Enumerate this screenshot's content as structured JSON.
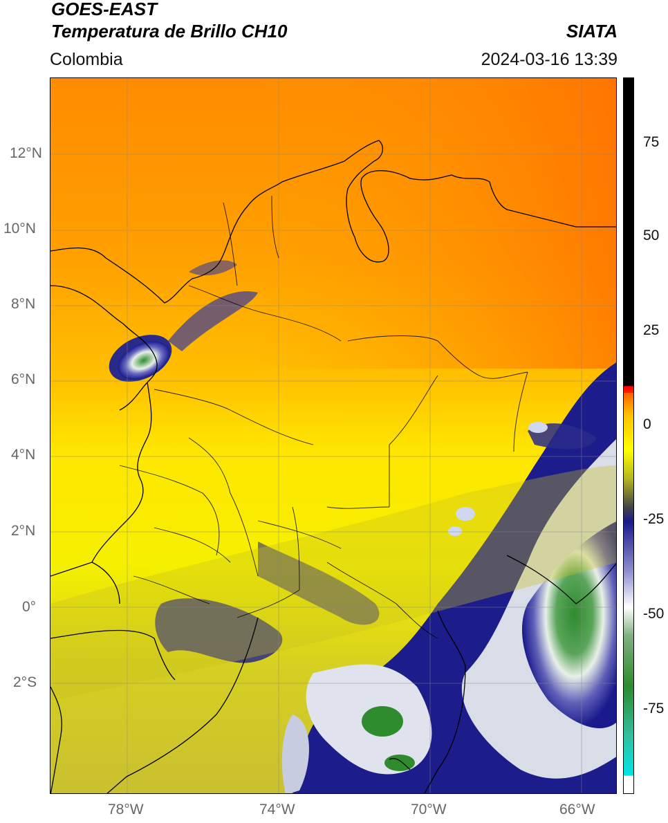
{
  "header": {
    "satellite": "GOES-EAST",
    "product": "Temperatura de Brillo CH10",
    "organization": "SIATA",
    "region": "Colombia",
    "timestamp": "2024-03-16 13:39"
  },
  "map": {
    "lat_labels": [
      "12°N",
      "10°N",
      "8°N",
      "6°N",
      "4°N",
      "2°N",
      "0°",
      "2°S"
    ],
    "lon_labels": [
      "78°W",
      "74°W",
      "70°W",
      "66°W"
    ]
  },
  "colorbar": {
    "ticks": [
      "75",
      "50",
      "25",
      "0",
      "-25",
      "-50",
      "-75"
    ],
    "colors": [
      "#ffffff",
      "#00e0e0",
      "#2e8b2e",
      "#ffffff",
      "#1a1a8c",
      "#b5b520",
      "#ffff00",
      "#ff9000",
      "#ff2000",
      "#000000"
    ]
  }
}
